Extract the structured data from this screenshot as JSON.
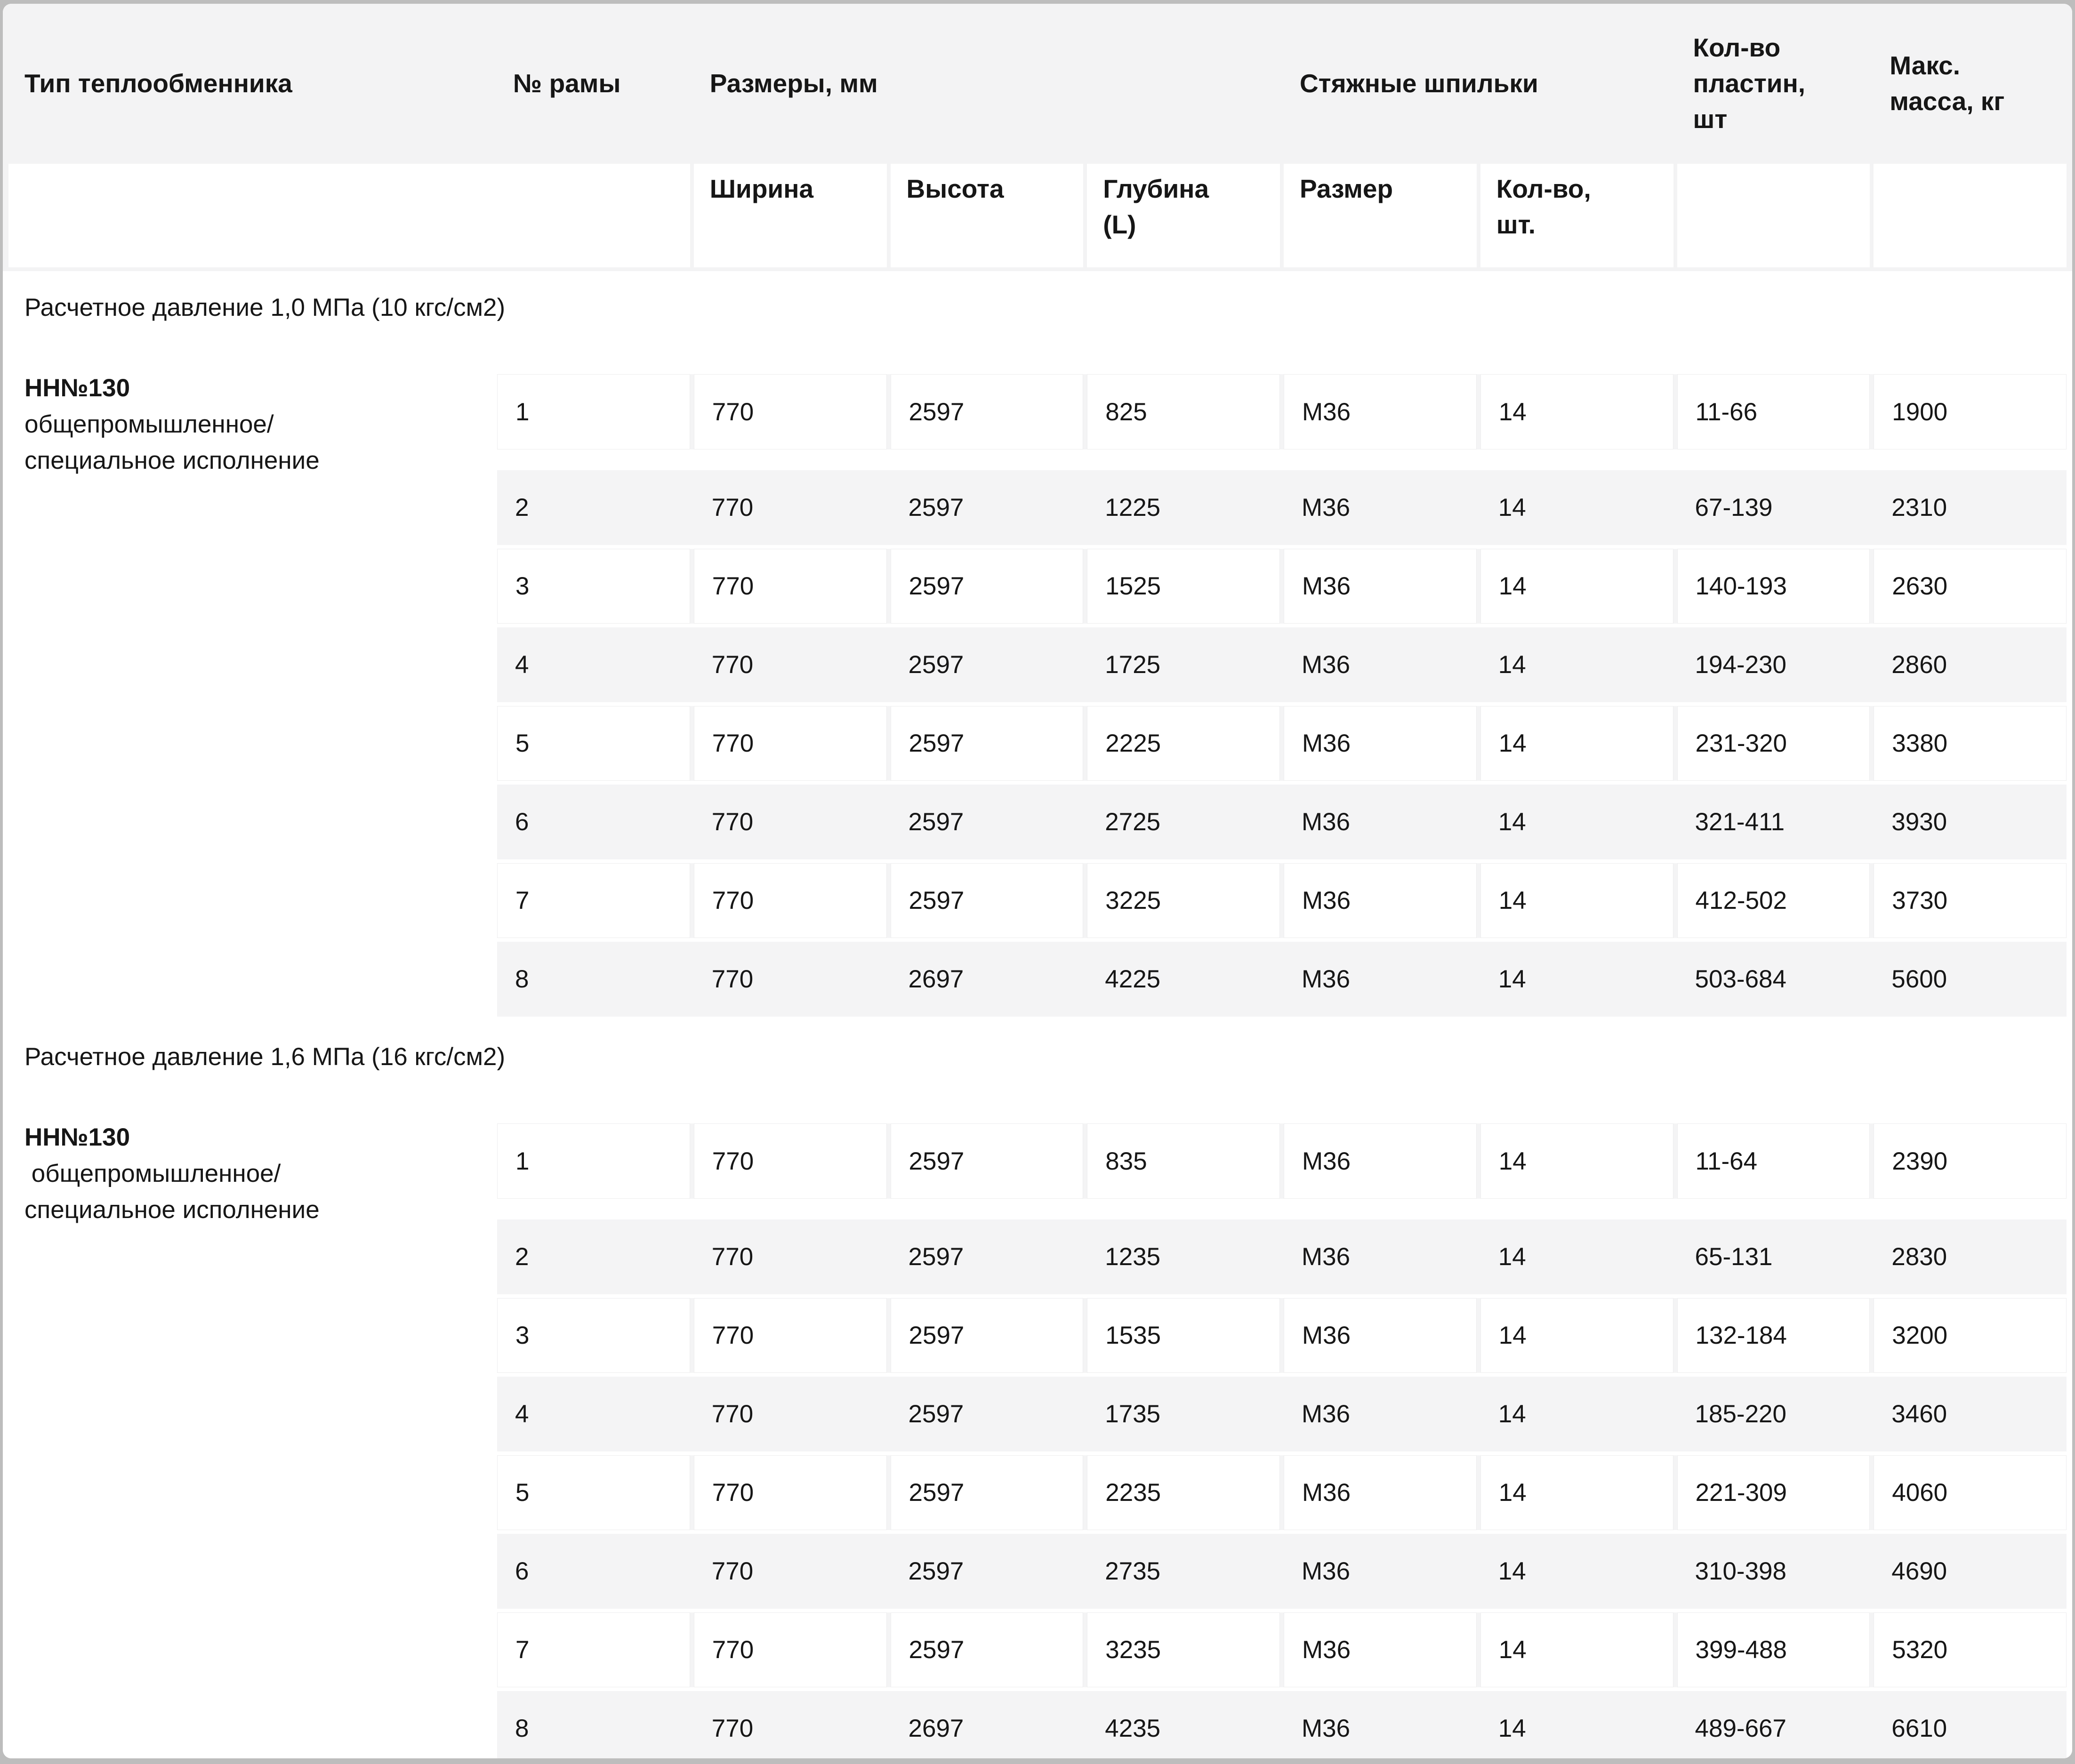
{
  "colors": {
    "page_bg": "#bdbdbd",
    "card_bg": "#ffffff",
    "header_bg": "#f3f3f4",
    "row_alt_bg": "#f4f4f5",
    "text": "#161616"
  },
  "header": {
    "col_type": "Тип теплообменника",
    "col_frame": "№ рамы",
    "col_dims": "Размеры, мм",
    "col_studs": "Стяжные шпильки",
    "col_plates": "Кол-во\nпластин,\nшт",
    "col_mass": "Макс.\nмасса, кг",
    "sub_width": "Ширина",
    "sub_height": "Высота",
    "sub_depth": "Глубина\n(L)",
    "sub_size": "Размер",
    "sub_qty": "Кол-во,\nшт."
  },
  "sections": [
    {
      "title": "Расчетное давление 1,0 МПа (10 кгс/см2)",
      "type_name": "НН№130",
      "type_desc": "общепромышленное/\nспециальное исполнение",
      "rows": [
        [
          "1",
          "770",
          "2597",
          "825",
          "М36",
          "14",
          "11-66",
          "1900"
        ],
        [
          "2",
          "770",
          "2597",
          "1225",
          "М36",
          "14",
          "67-139",
          "2310"
        ],
        [
          "3",
          "770",
          "2597",
          "1525",
          "М36",
          "14",
          "140-193",
          "2630"
        ],
        [
          "4",
          "770",
          "2597",
          "1725",
          "М36",
          "14",
          "194-230",
          "2860"
        ],
        [
          "5",
          "770",
          "2597",
          "2225",
          "М36",
          "14",
          "231-320",
          "3380"
        ],
        [
          "6",
          "770",
          "2597",
          "2725",
          "М36",
          "14",
          "321-411",
          "3930"
        ],
        [
          "7",
          "770",
          "2597",
          "3225",
          "М36",
          "14",
          "412-502",
          "3730"
        ],
        [
          "8",
          "770",
          "2697",
          "4225",
          "М36",
          "14",
          "503-684",
          "5600"
        ]
      ]
    },
    {
      "title": "Расчетное давление 1,6 МПа (16 кгс/см2)",
      "type_name": "НН№130",
      "type_desc": " общепромышленное/\nспециальное исполнение",
      "rows": [
        [
          "1",
          "770",
          "2597",
          "835",
          "М36",
          "14",
          "11-64",
          "2390"
        ],
        [
          "2",
          "770",
          "2597",
          "1235",
          "М36",
          "14",
          "65-131",
          "2830"
        ],
        [
          "3",
          "770",
          "2597",
          "1535",
          "М36",
          "14",
          "132-184",
          "3200"
        ],
        [
          "4",
          "770",
          "2597",
          "1735",
          "М36",
          "14",
          "185-220",
          "3460"
        ],
        [
          "5",
          "770",
          "2597",
          "2235",
          "М36",
          "14",
          "221-309",
          "4060"
        ],
        [
          "6",
          "770",
          "2597",
          "2735",
          "М36",
          "14",
          "310-398",
          "4690"
        ],
        [
          "7",
          "770",
          "2597",
          "3235",
          "М36",
          "14",
          "399-488",
          "5320"
        ],
        [
          "8",
          "770",
          "2697",
          "4235",
          "М36",
          "14",
          "489-667",
          "6610"
        ]
      ]
    }
  ]
}
